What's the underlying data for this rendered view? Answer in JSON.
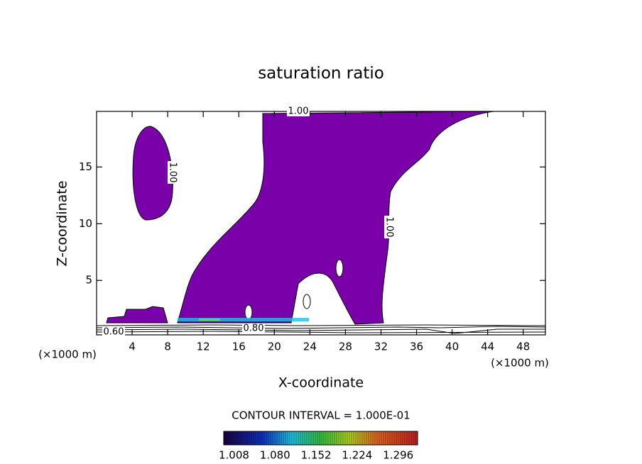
{
  "chart_data": {
    "type": "contour",
    "title": "saturation ratio",
    "xlabel": "X-coordinate",
    "ylabel": "Z-coordinate",
    "x_unit": "(×1000 m)",
    "y_unit": "(×1000 m)",
    "xlim": [
      0,
      50.5
    ],
    "ylim": [
      0.2,
      19.9
    ],
    "xticks": [
      4,
      8,
      12,
      16,
      20,
      24,
      28,
      32,
      36,
      40,
      44,
      48
    ],
    "yticks": [
      5,
      10,
      15
    ],
    "fill_color": "#7a00aa",
    "contour_labels": [
      "1.00",
      "1.00",
      "1.00",
      "0.80",
      "0.60"
    ],
    "contour_interval": "CONTOUR INTERVAL = 1.000E-01",
    "colorbar": {
      "clim": [
        0.99,
        1.33
      ],
      "ticks": [
        1.008,
        {
          "value": 1.08,
          "label": "1.080"
        },
        1.152,
        1.224,
        1.296
      ]
    }
  }
}
